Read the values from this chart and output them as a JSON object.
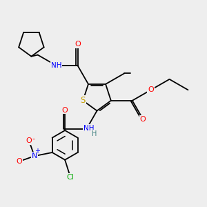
{
  "bg_color": "#eeeeee",
  "fig_size": [
    3.0,
    3.0
  ],
  "dpi": 100,
  "atom_colors": {
    "S": "#c8a000",
    "O": "#ff0000",
    "N": "#0000ff",
    "H": "#408080",
    "Cl": "#00aa00",
    "C": "#000000"
  },
  "bond_color": "#000000",
  "bond_lw": 1.3,
  "font_size": 7.5
}
